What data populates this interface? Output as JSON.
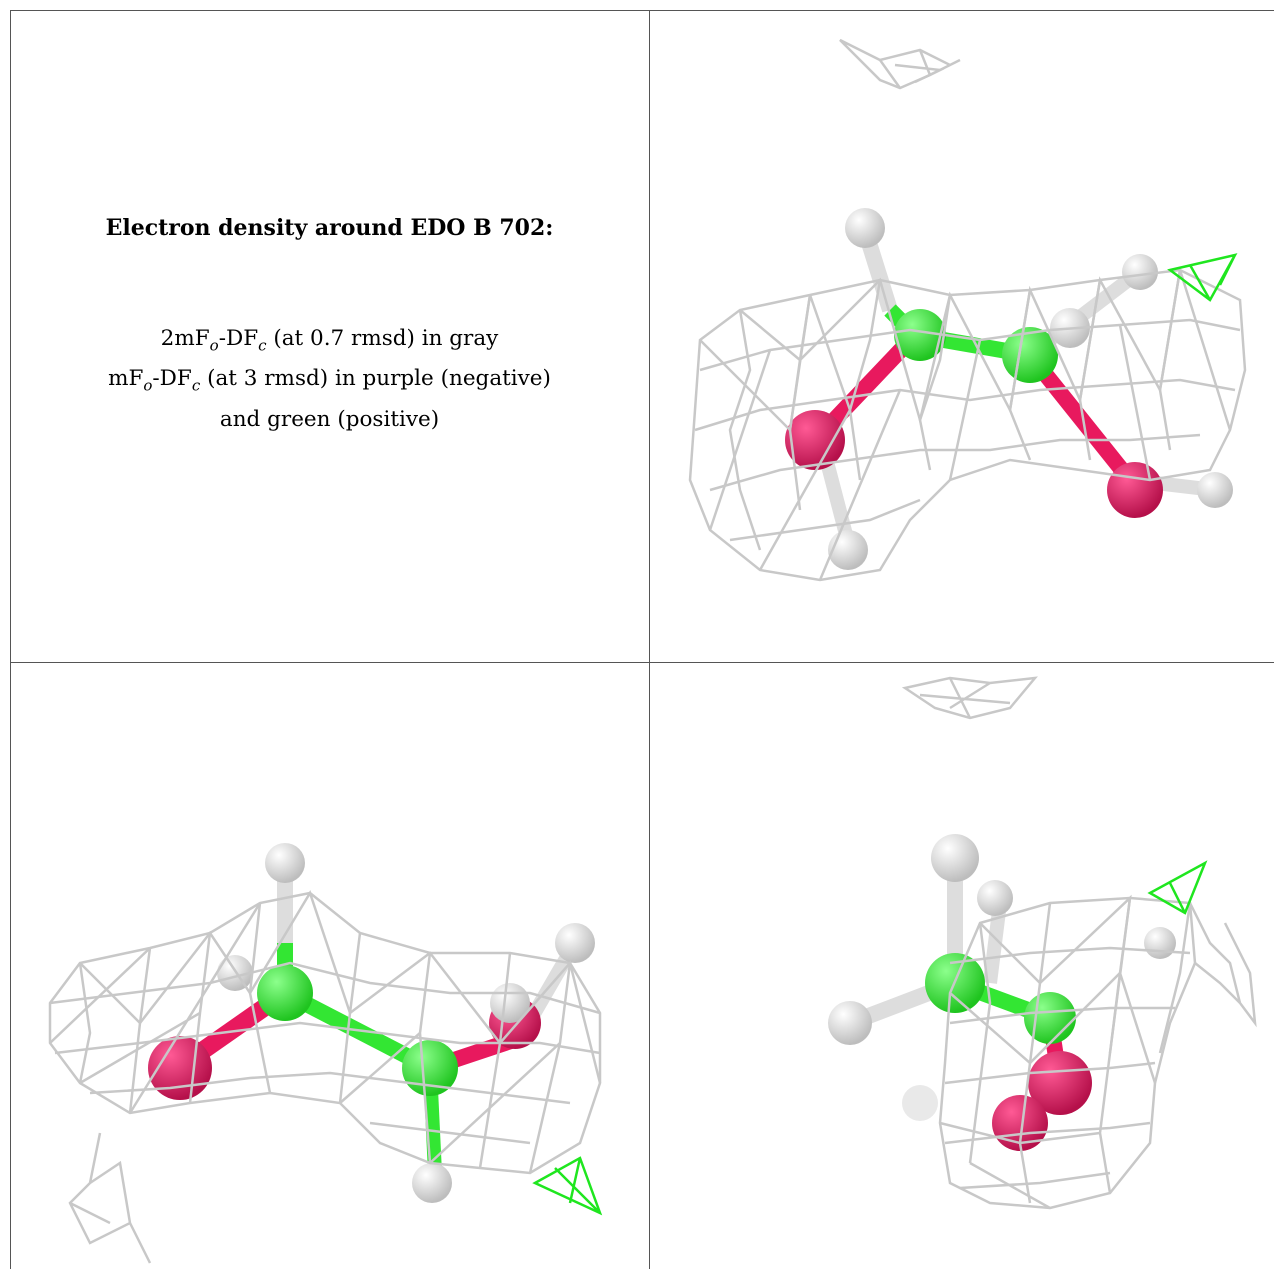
{
  "caption": {
    "title": "Electron density around EDO B 702:",
    "line1": {
      "prefix": "2mF",
      "sub1": "o",
      "mid": "-DF",
      "sub2": "c",
      "suffix": " (at 0.7 rmsd) in gray"
    },
    "line2": {
      "prefix": "mF",
      "sub1": "o",
      "mid": "-DF",
      "sub2": "c",
      "suffix": " (at 3 rmsd) in purple (negative)"
    },
    "line3": "and green (positive)"
  },
  "colors": {
    "mesh_gray": "#c8c8c8",
    "mesh_green": "#1fe61f",
    "carbon_green": "#33e633",
    "oxygen_pink": "#e8195e",
    "hydrogen_white": "#e6e6e6",
    "border": "#555555"
  },
  "panels": [
    {
      "id": "view-1",
      "content": "molecule with gray mesh"
    },
    {
      "id": "view-2",
      "content": "molecule with gray mesh"
    },
    {
      "id": "view-3",
      "content": "molecule with gray mesh"
    }
  ]
}
